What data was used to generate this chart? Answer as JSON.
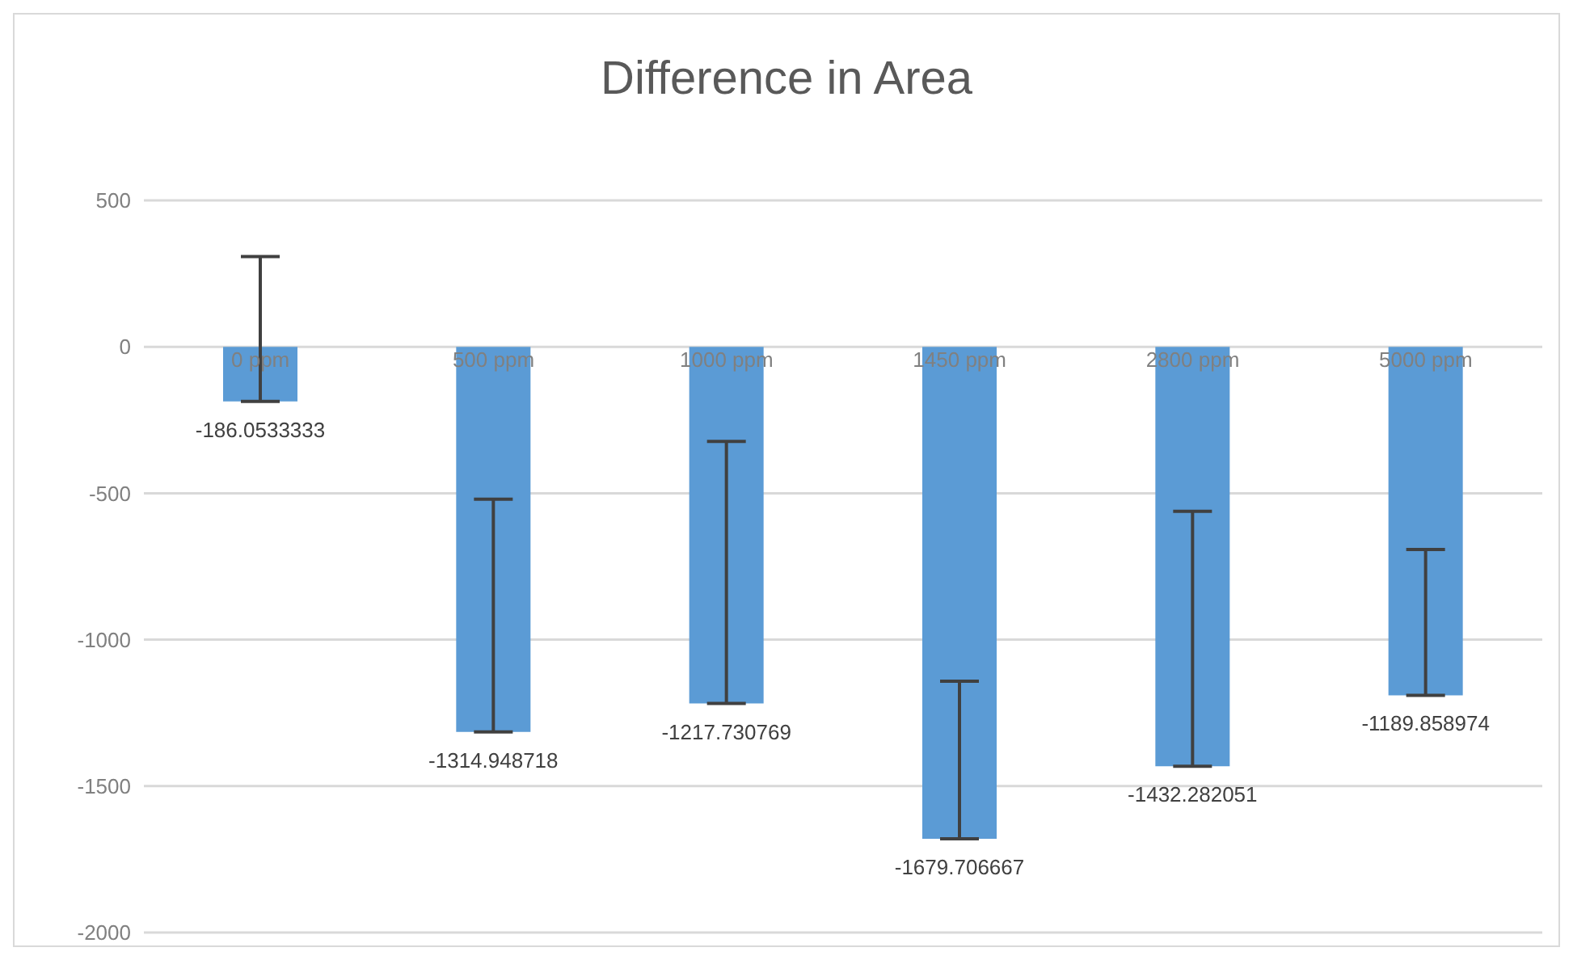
{
  "chart_data": {
    "type": "bar",
    "title": "Difference in Area",
    "categories": [
      "0 ppm",
      "500 ppm",
      "1000 ppm",
      "1450 ppm",
      "2800 ppm",
      "5000 ppm"
    ],
    "values": [
      -186.0533333,
      -1314.948718,
      -1217.730769,
      -1679.706667,
      -1432.282051,
      -1189.858974
    ],
    "errors": [
      [
        -186.0533333,
        308
      ],
      [
        -1314.948718,
        -520
      ],
      [
        -1217.730769,
        -323
      ],
      [
        -1679.706667,
        -1142
      ],
      [
        -1432.282051,
        -562
      ],
      [
        -1189.858974,
        -692
      ]
    ],
    "color": "#5b9bd5",
    "ylim": [
      -2000,
      500
    ],
    "yticks": [
      -2000,
      -1500,
      -1000,
      -500,
      0,
      500
    ],
    "grid": "y",
    "data_labels": true
  }
}
